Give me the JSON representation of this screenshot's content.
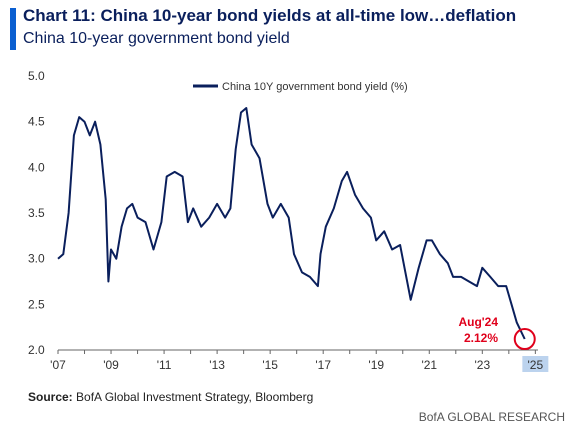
{
  "header": {
    "title": "Chart 11: China 10-year bond yields at all-time low…deflation",
    "subtitle": "China 10-year government bond yield"
  },
  "footer": {
    "source_label": "Source:",
    "source_text": " BofA Global Investment Strategy, Bloomberg",
    "brand": "BofA GLOBAL RESEARCH"
  },
  "colors": {
    "line": "#0a1f5c",
    "accent": "#0b5fd1",
    "highlight": "#e0001b",
    "axis_box": "#bcd3ee"
  },
  "chart_data": {
    "type": "line",
    "title": "",
    "xlabel": "",
    "ylabel": "",
    "ylim": [
      2.0,
      5.0
    ],
    "xlim": [
      2007.0,
      2025.1
    ],
    "y_ticks": [
      2.0,
      2.5,
      3.0,
      3.5,
      4.0,
      4.5,
      5.0
    ],
    "y_tick_labels": [
      "2.0",
      "2.5",
      "3.0",
      "3.5",
      "4.0",
      "4.5",
      "5.0"
    ],
    "x_ticks": [
      2007,
      2009,
      2011,
      2013,
      2015,
      2017,
      2019,
      2021,
      2023,
      2025
    ],
    "x_tick_labels": [
      "'07",
      "'09",
      "'11",
      "'13",
      "'15",
      "'17",
      "'19",
      "'21",
      "'23",
      "'25"
    ],
    "grid": false,
    "legend": {
      "position": "top-center",
      "entries": [
        "China 10Y government bond yield (%)"
      ]
    },
    "annotation": {
      "label_line1": "Aug'24",
      "label_line2": "2.12%",
      "x": 2024.6,
      "y": 2.12
    },
    "series": [
      {
        "name": "China 10Y government bond yield (%)",
        "x": [
          2007.0,
          2007.2,
          2007.4,
          2007.6,
          2007.8,
          2008.0,
          2008.2,
          2008.4,
          2008.6,
          2008.8,
          2008.9,
          2009.0,
          2009.2,
          2009.4,
          2009.6,
          2009.8,
          2010.0,
          2010.3,
          2010.6,
          2010.9,
          2011.1,
          2011.4,
          2011.7,
          2011.9,
          2012.1,
          2012.4,
          2012.7,
          2013.0,
          2013.3,
          2013.5,
          2013.7,
          2013.9,
          2014.1,
          2014.3,
          2014.6,
          2014.9,
          2015.1,
          2015.4,
          2015.7,
          2015.9,
          2016.2,
          2016.5,
          2016.8,
          2016.9,
          2017.1,
          2017.4,
          2017.7,
          2017.9,
          2018.2,
          2018.5,
          2018.8,
          2019.0,
          2019.3,
          2019.6,
          2019.9,
          2020.1,
          2020.3,
          2020.6,
          2020.9,
          2021.1,
          2021.4,
          2021.7,
          2021.9,
          2022.2,
          2022.5,
          2022.8,
          2023.0,
          2023.3,
          2023.6,
          2023.9,
          2024.1,
          2024.3,
          2024.6
        ],
        "values": [
          3.0,
          3.05,
          3.5,
          4.35,
          4.55,
          4.5,
          4.35,
          4.5,
          4.25,
          3.65,
          2.75,
          3.1,
          3.0,
          3.35,
          3.55,
          3.6,
          3.45,
          3.4,
          3.1,
          3.4,
          3.9,
          3.95,
          3.9,
          3.4,
          3.55,
          3.35,
          3.45,
          3.6,
          3.45,
          3.55,
          4.2,
          4.6,
          4.65,
          4.25,
          4.1,
          3.6,
          3.45,
          3.6,
          3.45,
          3.05,
          2.85,
          2.8,
          2.7,
          3.05,
          3.35,
          3.55,
          3.85,
          3.95,
          3.7,
          3.55,
          3.45,
          3.2,
          3.3,
          3.1,
          3.15,
          2.85,
          2.55,
          2.9,
          3.2,
          3.2,
          3.05,
          2.95,
          2.8,
          2.8,
          2.75,
          2.7,
          2.9,
          2.8,
          2.7,
          2.7,
          2.5,
          2.3,
          2.12
        ]
      }
    ]
  }
}
